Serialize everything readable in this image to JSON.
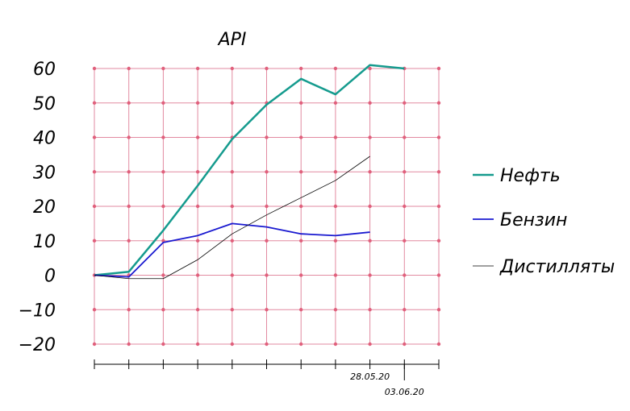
{
  "chart_data": {
    "type": "line",
    "title": "API",
    "xlabel": "",
    "ylabel": "",
    "ylim": [
      -20,
      60
    ],
    "yticks": [
      -20,
      -10,
      0,
      10,
      20,
      30,
      40,
      50,
      60
    ],
    "xcount": 10,
    "x_tick_labels": [
      {
        "index": 8,
        "label": "28.05.20"
      },
      {
        "index": 9,
        "label": "03.06.20"
      }
    ],
    "grid": true,
    "legend_position": "right",
    "series": [
      {
        "name": "Нефть",
        "color": "#159b8e",
        "width": 2.5,
        "values": [
          0,
          1,
          13,
          26,
          39.5,
          49.5,
          57,
          52.5,
          61,
          60
        ]
      },
      {
        "name": "Бензин",
        "color": "#1a1ad0",
        "width": 1.8,
        "values": [
          0,
          -0.5,
          9.5,
          11.5,
          15,
          14,
          12,
          11.5,
          12.5,
          null
        ]
      },
      {
        "name": "Дистилляты",
        "color": "#000000",
        "width": 0.8,
        "values": [
          0,
          -1,
          -1,
          4.5,
          12,
          17.5,
          22.5,
          27.5,
          34.5,
          null
        ]
      }
    ]
  }
}
